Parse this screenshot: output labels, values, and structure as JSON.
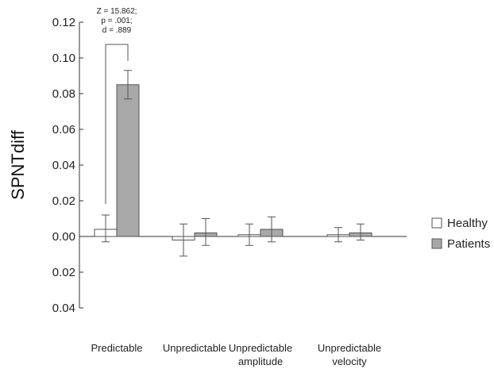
{
  "chart_data": {
    "type": "bar",
    "title": "",
    "xlabel": "",
    "ylabel": "SPNTdiff",
    "y_tick_labels": [
      "0.12",
      "0.10",
      "0.08",
      "0.06",
      "0.04",
      "0.02",
      "0.00",
      "0.02",
      "0.04"
    ],
    "y_tick_values": [
      0.12,
      0.1,
      0.08,
      0.06,
      0.04,
      0.02,
      0.0,
      -0.02,
      -0.04
    ],
    "ylim": [
      -0.04,
      0.12
    ],
    "grid": false,
    "legend_position": "right",
    "categories": [
      [
        "Predictable"
      ],
      [
        "Unpredictable"
      ],
      [
        "Unpredictable",
        "amplitude"
      ],
      [
        "Unpredictable",
        "velocity"
      ]
    ],
    "series": [
      {
        "name": "Healthy",
        "color": "#ffffff",
        "values": [
          0.004,
          -0.002,
          0.001,
          0.001
        ],
        "error_low": [
          -0.003,
          -0.011,
          -0.005,
          -0.003
        ],
        "error_high": [
          0.012,
          0.007,
          0.007,
          0.005
        ]
      },
      {
        "name": "Patients",
        "color": "#a8a8a8",
        "values": [
          0.085,
          0.002,
          0.004,
          0.002
        ],
        "error_low": [
          0.077,
          -0.005,
          -0.003,
          -0.002
        ],
        "error_high": [
          0.093,
          0.01,
          0.011,
          0.007
        ]
      }
    ],
    "annotation": {
      "category_index": 0,
      "lines": [
        "Z = 15.862;",
        "p = .001;",
        "d = .889"
      ]
    }
  }
}
